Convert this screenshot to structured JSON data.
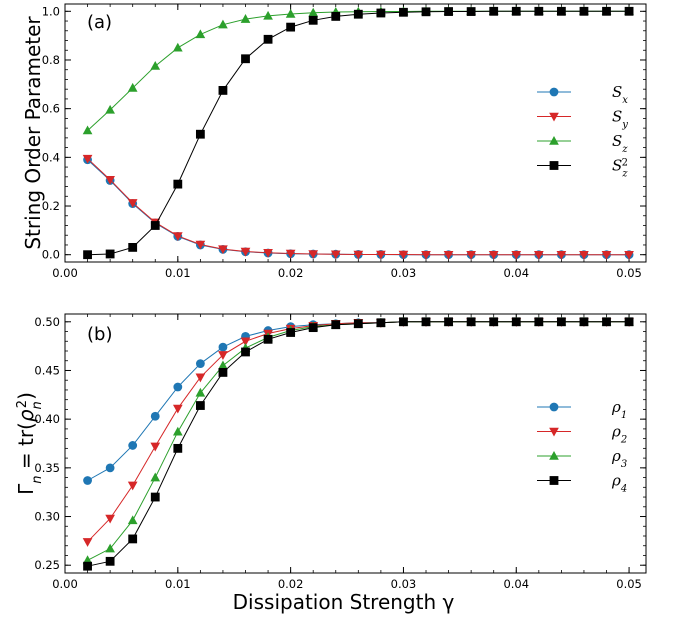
{
  "chart_data": [
    {
      "type": "line",
      "panel_label": "(a)",
      "title": "",
      "xlabel": "",
      "ylabel": "String Order Parameter",
      "xlim": [
        0.0,
        0.0515
      ],
      "ylim": [
        -0.03,
        1.03
      ],
      "xticks": [
        0.0,
        0.01,
        0.02,
        0.03,
        0.04,
        0.05
      ],
      "xtick_labels": [
        "0.00",
        "0.01",
        "0.02",
        "0.03",
        "0.04",
        "0.05"
      ],
      "yticks": [
        0.0,
        0.2,
        0.4,
        0.6,
        0.8,
        1.0
      ],
      "ytick_labels": [
        "0.0",
        "0.2",
        "0.4",
        "0.6",
        "0.8",
        "1.0"
      ],
      "grid": false,
      "legend_position": "right",
      "x": [
        0.002,
        0.004,
        0.006,
        0.008,
        0.01,
        0.012,
        0.014,
        0.016,
        0.018,
        0.02,
        0.022,
        0.024,
        0.026,
        0.028,
        0.03,
        0.032,
        0.034,
        0.036,
        0.038,
        0.04,
        0.042,
        0.044,
        0.046,
        0.048,
        0.05
      ],
      "series": [
        {
          "name": "S_x",
          "label_main": "S",
          "label_sub": "x",
          "label_sup": "",
          "color": "#1f77b4",
          "marker": "circle",
          "values": [
            0.39,
            0.305,
            0.21,
            0.13,
            0.075,
            0.04,
            0.022,
            0.012,
            0.007,
            0.004,
            0.003,
            0.002,
            0.001,
            0.001,
            0.0,
            0.0,
            0.0,
            0.0,
            0.0,
            0.0,
            0.0,
            0.0,
            0.0,
            0.0,
            0.0
          ]
        },
        {
          "name": "S_y",
          "label_main": "S",
          "label_sub": "y",
          "label_sup": "",
          "color": "#d62728",
          "marker": "triangle-down",
          "values": [
            0.395,
            0.308,
            0.213,
            0.133,
            0.077,
            0.042,
            0.023,
            0.013,
            0.008,
            0.005,
            0.003,
            0.002,
            0.001,
            0.001,
            0.001,
            0.0,
            0.0,
            0.0,
            0.0,
            0.0,
            0.0,
            0.0,
            0.0,
            0.0,
            0.0
          ]
        },
        {
          "name": "S_z",
          "label_main": "S",
          "label_sub": "z",
          "label_sup": "",
          "color": "#2ca02c",
          "marker": "triangle-up",
          "values": [
            0.51,
            0.595,
            0.685,
            0.775,
            0.85,
            0.905,
            0.945,
            0.968,
            0.981,
            0.989,
            0.994,
            0.997,
            0.998,
            0.999,
            0.999,
            1.0,
            1.0,
            1.0,
            1.0,
            1.0,
            1.0,
            1.0,
            1.0,
            1.0,
            1.0
          ]
        },
        {
          "name": "S_z^2",
          "label_main": "S",
          "label_sub": "z",
          "label_sup": "2",
          "color": "#000000",
          "marker": "square",
          "values": [
            0.0,
            0.003,
            0.03,
            0.12,
            0.29,
            0.495,
            0.675,
            0.805,
            0.885,
            0.935,
            0.963,
            0.979,
            0.988,
            0.993,
            0.996,
            0.998,
            0.999,
            0.999,
            1.0,
            1.0,
            1.0,
            1.0,
            1.0,
            1.0,
            1.0
          ]
        }
      ]
    },
    {
      "type": "line",
      "panel_label": "(b)",
      "title": "",
      "xlabel": "Dissipation Strength γ",
      "ylabel": "Γn = tr(ρn²)",
      "xlim": [
        0.0,
        0.0515
      ],
      "ylim": [
        0.242,
        0.508
      ],
      "xticks": [
        0.0,
        0.01,
        0.02,
        0.03,
        0.04,
        0.05
      ],
      "xtick_labels": [
        "0.00",
        "0.01",
        "0.02",
        "0.03",
        "0.04",
        "0.05"
      ],
      "yticks": [
        0.25,
        0.3,
        0.35,
        0.4,
        0.45,
        0.5
      ],
      "ytick_labels": [
        "0.25",
        "0.30",
        "0.35",
        "0.40",
        "0.45",
        "0.50"
      ],
      "grid": false,
      "legend_position": "right",
      "x": [
        0.002,
        0.004,
        0.006,
        0.008,
        0.01,
        0.012,
        0.014,
        0.016,
        0.018,
        0.02,
        0.022,
        0.024,
        0.026,
        0.028,
        0.03,
        0.032,
        0.034,
        0.036,
        0.038,
        0.04,
        0.042,
        0.044,
        0.046,
        0.048,
        0.05
      ],
      "series": [
        {
          "name": "ρ_1",
          "label_main": "ρ",
          "label_sub": "1",
          "label_sup": "",
          "color": "#1f77b4",
          "marker": "circle",
          "values": [
            0.337,
            0.35,
            0.373,
            0.403,
            0.433,
            0.457,
            0.474,
            0.485,
            0.491,
            0.495,
            0.497,
            0.498,
            0.499,
            0.499,
            0.5,
            0.5,
            0.5,
            0.5,
            0.5,
            0.5,
            0.5,
            0.5,
            0.5,
            0.5,
            0.5
          ]
        },
        {
          "name": "ρ_2",
          "label_main": "ρ",
          "label_sub": "2",
          "label_sup": "",
          "color": "#d62728",
          "marker": "triangle-down",
          "values": [
            0.274,
            0.298,
            0.332,
            0.372,
            0.411,
            0.443,
            0.466,
            0.48,
            0.488,
            0.493,
            0.496,
            0.498,
            0.499,
            0.499,
            0.5,
            0.5,
            0.5,
            0.5,
            0.5,
            0.5,
            0.5,
            0.5,
            0.5,
            0.5,
            0.5
          ]
        },
        {
          "name": "ρ_3",
          "label_main": "ρ",
          "label_sub": "3",
          "label_sup": "",
          "color": "#2ca02c",
          "marker": "triangle-up",
          "values": [
            0.255,
            0.267,
            0.296,
            0.34,
            0.387,
            0.427,
            0.455,
            0.473,
            0.484,
            0.491,
            0.495,
            0.497,
            0.498,
            0.499,
            0.5,
            0.5,
            0.5,
            0.5,
            0.5,
            0.5,
            0.5,
            0.5,
            0.5,
            0.5,
            0.5
          ]
        },
        {
          "name": "ρ_4",
          "label_main": "ρ",
          "label_sub": "4",
          "label_sup": "",
          "color": "#000000",
          "marker": "square",
          "values": [
            0.249,
            0.254,
            0.277,
            0.32,
            0.37,
            0.414,
            0.448,
            0.469,
            0.482,
            0.489,
            0.494,
            0.497,
            0.498,
            0.499,
            0.5,
            0.5,
            0.5,
            0.5,
            0.5,
            0.5,
            0.5,
            0.5,
            0.5,
            0.5,
            0.5
          ]
        }
      ]
    }
  ]
}
